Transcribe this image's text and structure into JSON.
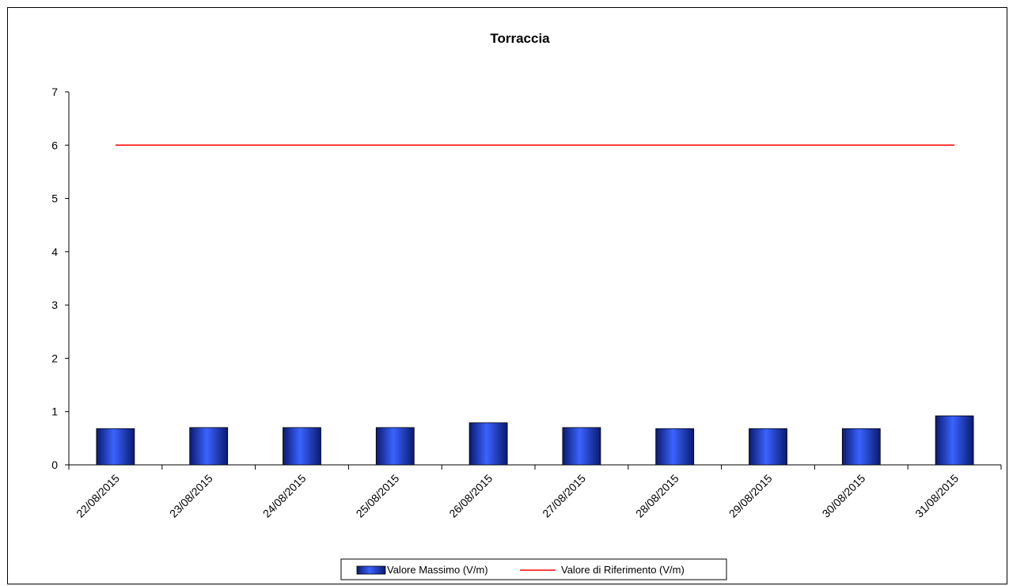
{
  "chart_data": {
    "type": "bar",
    "title": "Torraccia",
    "xlabel": "",
    "ylabel": "",
    "categories": [
      "22/08/2015",
      "23/08/2015",
      "24/08/2015",
      "25/08/2015",
      "26/08/2015",
      "27/08/2015",
      "28/08/2015",
      "29/08/2015",
      "30/08/2015",
      "31/08/2015"
    ],
    "series": [
      {
        "name": "Valore Massimo (V/m)",
        "kind": "bar",
        "values": [
          0.68,
          0.7,
          0.7,
          0.7,
          0.79,
          0.7,
          0.68,
          0.68,
          0.68,
          0.92
        ],
        "color": "#1f3fe0"
      },
      {
        "name": "Valore di Riferimento (V/m)",
        "kind": "line",
        "values": [
          6,
          6,
          6,
          6,
          6,
          6,
          6,
          6,
          6,
          6
        ],
        "color": "#ff0000"
      }
    ],
    "ylim": [
      0,
      7
    ],
    "yticks": [
      "0",
      "1",
      "2",
      "3",
      "4",
      "5",
      "6",
      "7"
    ],
    "grid": false,
    "legend_position": "bottom"
  }
}
